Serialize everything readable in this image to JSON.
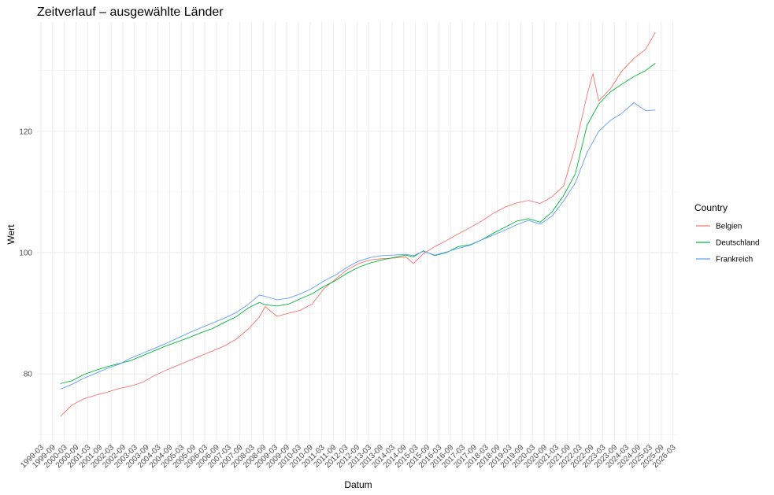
{
  "chart_data": {
    "type": "line",
    "title": "Zeitverlauf – ausgewählte Länder",
    "xlabel": "Datum",
    "ylabel": "Wert",
    "ylim": [
      69,
      138
    ],
    "xlim": [
      "1999-01",
      "2026-06"
    ],
    "y_ticks": [
      80,
      100,
      120
    ],
    "x_ticks": [
      "1999-03",
      "1999-09",
      "2000-03",
      "2000-09",
      "2001-03",
      "2001-09",
      "2002-03",
      "2002-09",
      "2003-03",
      "2003-09",
      "2004-03",
      "2004-09",
      "2005-03",
      "2005-09",
      "2006-03",
      "2006-09",
      "2007-03",
      "2007-09",
      "2008-03",
      "2008-09",
      "2009-03",
      "2009-09",
      "2010-03",
      "2010-09",
      "2011-03",
      "2011-09",
      "2012-03",
      "2012-09",
      "2013-03",
      "2013-09",
      "2014-03",
      "2014-09",
      "2015-03",
      "2015-09",
      "2016-03",
      "2016-09",
      "2017-03",
      "2017-09",
      "2018-03",
      "2018-09",
      "2019-03",
      "2019-09",
      "2020-03",
      "2020-09",
      "2021-03",
      "2021-09",
      "2022-03",
      "2022-09",
      "2023-03",
      "2023-09",
      "2024-03",
      "2024-09",
      "2025-03",
      "2025-09",
      "2026-03"
    ],
    "grid": true,
    "legend": {
      "title": "Country",
      "position": "right"
    },
    "series": [
      {
        "name": "Belgien",
        "color": "#F8766D",
        "x": [
          "2000-01",
          "2000-07",
          "2001-01",
          "2001-07",
          "2002-01",
          "2002-07",
          "2003-01",
          "2003-07",
          "2004-01",
          "2004-07",
          "2005-01",
          "2005-07",
          "2006-01",
          "2006-07",
          "2007-01",
          "2007-07",
          "2008-01",
          "2008-07",
          "2008-10",
          "2009-04",
          "2009-10",
          "2010-04",
          "2010-10",
          "2011-04",
          "2011-10",
          "2012-04",
          "2012-10",
          "2013-04",
          "2013-10",
          "2014-04",
          "2014-10",
          "2015-02",
          "2015-07",
          "2016-01",
          "2016-07",
          "2017-01",
          "2017-07",
          "2018-01",
          "2018-07",
          "2019-01",
          "2019-07",
          "2020-01",
          "2020-07",
          "2021-01",
          "2021-07",
          "2022-01",
          "2022-07",
          "2022-10",
          "2023-01",
          "2023-07",
          "2024-01",
          "2024-07",
          "2025-01",
          "2025-06"
        ],
        "values": [
          73.0,
          74.9,
          75.9,
          76.5,
          77.0,
          77.6,
          78.0,
          78.6,
          79.7,
          80.6,
          81.4,
          82.2,
          83.0,
          83.8,
          84.6,
          85.7,
          87.3,
          89.4,
          91.1,
          89.5,
          90.0,
          90.5,
          91.5,
          94.0,
          95.6,
          97.2,
          98.2,
          98.8,
          99.0,
          99.1,
          99.3,
          98.2,
          99.8,
          101.0,
          102.0,
          103.1,
          104.1,
          105.2,
          106.5,
          107.5,
          108.2,
          108.6,
          108.1,
          109.2,
          111.0,
          117.5,
          126.0,
          129.5,
          125.0,
          127.0,
          130.0,
          132.0,
          133.5,
          136.3
        ]
      },
      {
        "name": "Deutschland",
        "color": "#00BA38",
        "x": [
          "2000-01",
          "2000-07",
          "2001-01",
          "2001-07",
          "2002-01",
          "2002-07",
          "2003-01",
          "2003-07",
          "2004-01",
          "2004-07",
          "2005-01",
          "2005-07",
          "2006-01",
          "2006-07",
          "2007-01",
          "2007-07",
          "2008-01",
          "2008-07",
          "2008-10",
          "2009-04",
          "2009-10",
          "2010-04",
          "2010-10",
          "2011-04",
          "2011-10",
          "2012-04",
          "2012-10",
          "2013-04",
          "2013-10",
          "2014-04",
          "2014-10",
          "2015-02",
          "2015-07",
          "2016-01",
          "2016-07",
          "2017-01",
          "2017-07",
          "2018-01",
          "2018-07",
          "2019-01",
          "2019-07",
          "2020-01",
          "2020-07",
          "2021-01",
          "2021-07",
          "2022-01",
          "2022-07",
          "2023-01",
          "2023-07",
          "2024-01",
          "2024-07",
          "2025-01",
          "2025-06"
        ],
        "values": [
          78.4,
          78.9,
          79.9,
          80.6,
          81.2,
          81.7,
          82.2,
          83.0,
          83.8,
          84.6,
          85.3,
          86.0,
          86.8,
          87.5,
          88.5,
          89.4,
          90.8,
          91.8,
          91.4,
          91.2,
          91.5,
          92.4,
          93.2,
          94.4,
          95.4,
          96.6,
          97.6,
          98.3,
          98.8,
          99.2,
          99.6,
          99.3,
          100.3,
          99.5,
          100.0,
          101.0,
          101.3,
          102.1,
          103.2,
          104.2,
          105.2,
          105.6,
          105.0,
          106.7,
          109.4,
          113.0,
          121.0,
          124.5,
          126.5,
          127.8,
          129.0,
          130.0,
          131.2
        ]
      },
      {
        "name": "Frankreich",
        "color": "#619CFF",
        "x": [
          "2000-01",
          "2000-07",
          "2001-01",
          "2001-07",
          "2002-01",
          "2002-07",
          "2003-01",
          "2003-07",
          "2004-01",
          "2004-07",
          "2005-01",
          "2005-07",
          "2006-01",
          "2006-07",
          "2007-01",
          "2007-07",
          "2008-01",
          "2008-07",
          "2008-10",
          "2009-04",
          "2009-10",
          "2010-04",
          "2010-10",
          "2011-04",
          "2011-10",
          "2012-04",
          "2012-10",
          "2013-04",
          "2013-10",
          "2014-04",
          "2014-10",
          "2015-02",
          "2015-07",
          "2016-01",
          "2016-07",
          "2017-01",
          "2017-07",
          "2018-01",
          "2018-07",
          "2019-01",
          "2019-07",
          "2020-01",
          "2020-07",
          "2021-01",
          "2021-07",
          "2022-01",
          "2022-07",
          "2023-01",
          "2023-07",
          "2024-01",
          "2024-07",
          "2025-01",
          "2025-06"
        ],
        "values": [
          77.5,
          78.3,
          79.3,
          80.1,
          80.9,
          81.6,
          82.6,
          83.4,
          84.2,
          85.0,
          85.9,
          86.8,
          87.6,
          88.4,
          89.2,
          90.1,
          91.4,
          93.0,
          92.8,
          92.2,
          92.5,
          93.2,
          94.1,
          95.3,
          96.3,
          97.6,
          98.6,
          99.2,
          99.5,
          99.6,
          99.7,
          99.5,
          100.2,
          99.6,
          100.1,
          100.7,
          101.2,
          102.1,
          102.9,
          103.7,
          104.6,
          105.3,
          104.7,
          106.0,
          108.5,
          111.5,
          116.5,
          120.0,
          121.8,
          123.0,
          124.7,
          123.4,
          123.5
        ]
      }
    ]
  }
}
